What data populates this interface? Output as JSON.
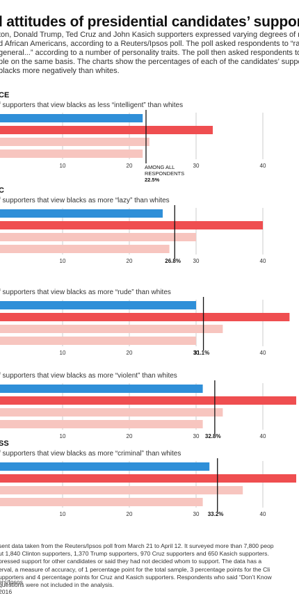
{
  "title": "l attitudes of presidential candidates’ suppor",
  "intro_lines": [
    "ton, Donald Trump, Ted Cruz and John Kasich supporters expressed varying degrees of r",
    "d African Americans, according to a Reuters/Ipsos poll. The poll asked respondents to “ra",
    "general...” according to a number of personality traits. The poll then asked respondents to",
    "ple on the same basis. The charts show the percentages of each of the candidates’ suppor",
    "blacks more negatively than whites."
  ],
  "colors": {
    "blue": "#2f8fd8",
    "red": "#ef4e50",
    "pink": "#f7c5bf",
    "line": "#111111",
    "grid": "#cccccc"
  },
  "chart_data": [
    {
      "type": "bar",
      "section": "CE",
      "subtitle": "f supporters that view blacks as less “intelligent” than whites",
      "xlim": [
        0,
        40
      ],
      "ticks": [
        "10",
        "20",
        "30",
        "40"
      ],
      "values": [
        22,
        32.5,
        23,
        22
      ],
      "average": 22.5,
      "average_label": [
        "AMONG ALL",
        "RESPONDENTS",
        "22.5%"
      ]
    },
    {
      "type": "bar",
      "section": "C",
      "subtitle": "f supporters that view blacks as more “lazy” than whites",
      "xlim": [
        0,
        40
      ],
      "ticks": [
        "10",
        "20",
        "30",
        "40"
      ],
      "values": [
        25,
        40,
        30,
        26
      ],
      "average": 26.8,
      "average_label": [
        "26.8%"
      ]
    },
    {
      "type": "bar",
      "section": "",
      "subtitle": "f supporters that view blacks as more “rude” than whites",
      "xlim": [
        0,
        40
      ],
      "ticks": [
        "10",
        "20",
        "30",
        "40"
      ],
      "values": [
        30,
        44,
        34,
        30
      ],
      "average": 31.1,
      "average_label": [
        "31.1%"
      ]
    },
    {
      "type": "bar",
      "section": "",
      "subtitle": "f supporters that view blacks as more “violent” than whites",
      "xlim": [
        0,
        40
      ],
      "ticks": [
        "10",
        "20",
        "30",
        "40"
      ],
      "values": [
        31,
        45,
        34,
        31
      ],
      "average": 32.8,
      "average_label": [
        "32.8%"
      ]
    },
    {
      "type": "bar",
      "section": "SS",
      "subtitle": "f supporters that view blacks as more “criminal” than whites",
      "xlim": [
        0,
        40
      ],
      "ticks": [
        "10",
        "20",
        "30",
        "40"
      ],
      "values": [
        32,
        45,
        37,
        31
      ],
      "average": 33.2,
      "average_label": [
        "33.2%"
      ]
    }
  ],
  "footnote_lines": [
    "sent data taken from the Reuters/Ipsos poll from March 21 to April 12. It surveyed more than 7,800 peop",
    "ut 1,840 Clinton supporters, 1,370 Trump supporters, 970 Cruz supporters and 650 Kasich supporters.",
    "pressed support for other candidates or said they had not decided whom to support. The data has a",
    "erval, a measure of accuracy, of 1 percentage point for the total sample, 3 percentage points for the Cli",
    "upporters and 4 percentage points for Cruz and Kasich supporters. Respondents who said “Don’t Know",
    "questions were not included in the analysis."
  ],
  "source": "ers/Ipsos",
  "credit": "2016"
}
